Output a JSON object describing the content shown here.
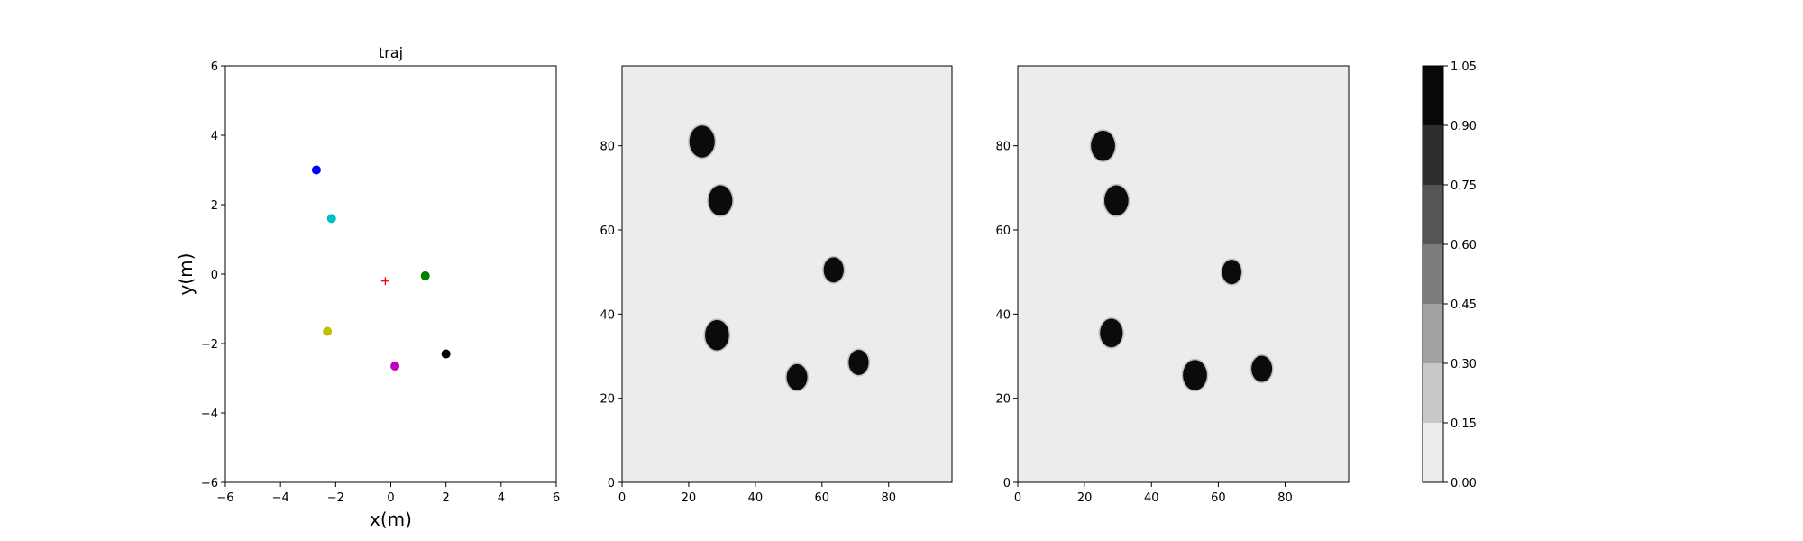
{
  "chart_data": [
    {
      "type": "scatter",
      "title": "traj",
      "xlabel": "x(m)",
      "ylabel": "y(m)",
      "xlim": [
        -6,
        6
      ],
      "ylim": [
        -6,
        6
      ],
      "xticks": [
        -6,
        -4,
        -2,
        0,
        2,
        4,
        6
      ],
      "yticks": [
        -6,
        -4,
        -2,
        0,
        2,
        4,
        6
      ],
      "grid": false,
      "points": [
        {
          "x": -2.7,
          "y": 3.0,
          "color": "#0000ff",
          "marker": "dot"
        },
        {
          "x": -2.15,
          "y": 1.6,
          "color": "#00bfbf",
          "marker": "dot"
        },
        {
          "x": 1.25,
          "y": -0.05,
          "color": "#008000",
          "marker": "dot"
        },
        {
          "x": -2.3,
          "y": -1.65,
          "color": "#bfbf00",
          "marker": "dot"
        },
        {
          "x": 0.15,
          "y": -2.65,
          "color": "#bf00bf",
          "marker": "dot"
        },
        {
          "x": 2.0,
          "y": -2.3,
          "color": "#000000",
          "marker": "dot"
        },
        {
          "x": -0.2,
          "y": -0.2,
          "color": "#ff0000",
          "marker": "plus"
        }
      ]
    },
    {
      "type": "heatmap",
      "title": "",
      "xlim": [
        0,
        99
      ],
      "ylim": [
        0,
        99
      ],
      "xticks": [
        0,
        20,
        40,
        60,
        80
      ],
      "yticks": [
        0,
        20,
        40,
        60,
        80
      ],
      "background_value": 0.0,
      "blobs": [
        {
          "x": 24,
          "y": 81,
          "r": 3.8,
          "value": 1.0
        },
        {
          "x": 29.5,
          "y": 67,
          "r": 3.6,
          "value": 1.0
        },
        {
          "x": 63.5,
          "y": 50.5,
          "r": 3.0,
          "value": 1.0
        },
        {
          "x": 28.5,
          "y": 35,
          "r": 3.6,
          "value": 1.0
        },
        {
          "x": 52.5,
          "y": 25,
          "r": 3.1,
          "value": 1.0
        },
        {
          "x": 71,
          "y": 28.5,
          "r": 3.0,
          "value": 1.0
        }
      ]
    },
    {
      "type": "heatmap",
      "title": "",
      "xlim": [
        0,
        99
      ],
      "ylim": [
        0,
        99
      ],
      "xticks": [
        0,
        20,
        40,
        60,
        80
      ],
      "yticks": [
        0,
        20,
        40,
        60,
        80
      ],
      "background_value": 0.0,
      "blobs": [
        {
          "x": 25.5,
          "y": 80,
          "r": 3.6,
          "value": 1.0
        },
        {
          "x": 29.5,
          "y": 67,
          "r": 3.6,
          "value": 1.0
        },
        {
          "x": 64,
          "y": 50,
          "r": 2.9,
          "value": 1.0
        },
        {
          "x": 28,
          "y": 35.5,
          "r": 3.4,
          "value": 1.0
        },
        {
          "x": 53,
          "y": 25.5,
          "r": 3.6,
          "value": 1.0
        },
        {
          "x": 73,
          "y": 27,
          "r": 3.1,
          "value": 1.0
        }
      ]
    }
  ],
  "colorbar": {
    "ticks": [
      "0.00",
      "0.15",
      "0.30",
      "0.45",
      "0.60",
      "0.75",
      "0.90",
      "1.05"
    ],
    "levels": [
      0.0,
      0.15,
      0.3,
      0.45,
      0.6,
      0.75,
      0.9,
      1.05
    ],
    "colors": [
      "#ececec",
      "#c9c9c9",
      "#a2a2a2",
      "#7c7c7c",
      "#555555",
      "#2e2e2e",
      "#080808"
    ]
  }
}
